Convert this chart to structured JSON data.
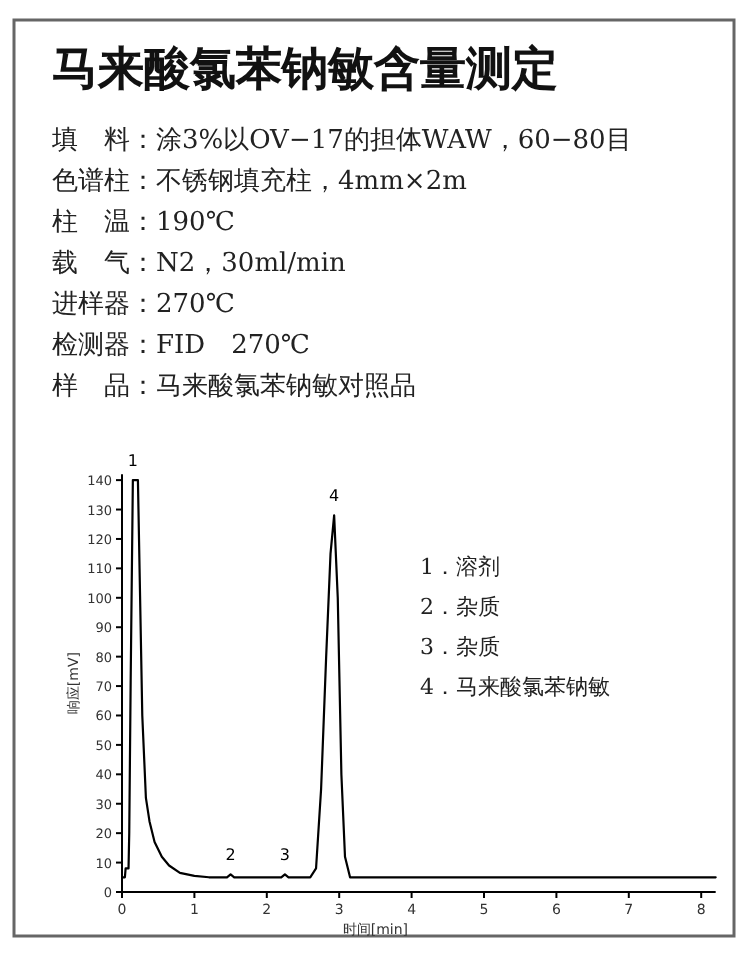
{
  "chart_data": {
    "type": "line",
    "title": "马来酸氯苯钠敏含量测定",
    "subtitle": "填　料：涂3%以OV−17的担体WAW，60−80目",
    "xlabel": "时间[min]",
    "ylabel": "响应[mV]",
    "x": [
      0,
      0.04,
      0.05,
      0.09,
      0.1,
      0.12,
      0.15,
      0.18,
      0.22,
      0.28,
      0.33,
      0.38,
      0.45,
      0.55,
      0.65,
      0.8,
      1.0,
      1.2,
      1.45,
      1.5,
      1.55,
      2.2,
      2.25,
      2.3,
      2.6,
      2.68,
      2.75,
      2.82,
      2.88,
      2.93,
      2.98,
      3.03,
      3.08,
      3.15,
      3.3,
      4,
      5,
      6,
      7,
      8,
      8.2
    ],
    "series": [
      {
        "color": "#000000",
        "values": [
          5,
          5,
          8,
          8,
          20,
          72,
          140,
          140,
          140,
          60,
          32,
          24,
          17,
          12,
          9,
          6.5,
          5.5,
          5,
          5,
          6,
          5,
          5,
          6,
          5,
          5,
          8,
          35,
          80,
          115,
          128,
          100,
          40,
          12,
          5,
          5,
          5,
          5,
          5,
          5,
          5,
          5
        ]
      }
    ],
    "xlim": [
      0,
      8.2
    ],
    "ylim": [
      0,
      142
    ],
    "xticks": [
      0,
      1,
      2,
      3,
      4,
      5,
      6,
      7,
      8
    ],
    "yticks": [
      0,
      10,
      20,
      30,
      40,
      50,
      60,
      70,
      80,
      90,
      100,
      110,
      120,
      130,
      140
    ],
    "grid": false,
    "marker": "none",
    "line_style": "solid",
    "annotations": [
      {
        "text": "1",
        "x": 0.15,
        "y": 140
      },
      {
        "text": "2",
        "x": 1.5,
        "y": 6
      },
      {
        "text": "3",
        "x": 2.25,
        "y": 6
      },
      {
        "text": "4",
        "x": 2.93,
        "y": 128
      },
      "色谱柱：不锈钢填充柱，4mm×2m",
      "柱　温：190℃",
      "载　气：N2，30ml/min",
      "进样器：270℃",
      "检测器：FID　270℃",
      "样　品：马来酸氯苯钠敏对照品",
      "1．溶剂",
      "2．杂质",
      "3．杂质",
      "4．马来酸氯苯钠敏"
    ]
  }
}
